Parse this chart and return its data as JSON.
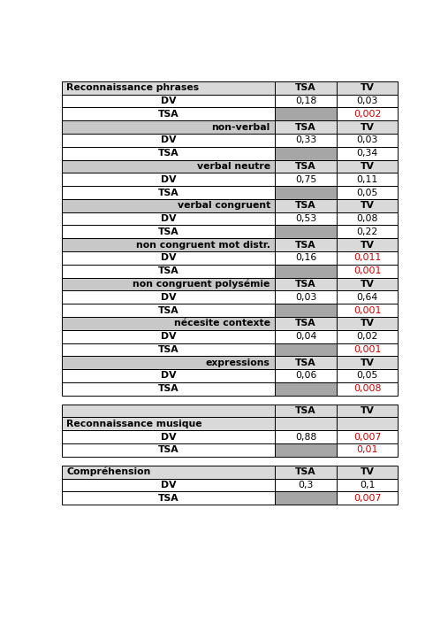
{
  "col_bg_light": "#d9d9d9",
  "col_bg_dark": "#a6a6a6",
  "white_bg": "#ffffff",
  "red_color": "#cc0000",
  "black_color": "#000000",
  "rows": [
    {
      "type": "section_header",
      "label": "Reconnaissance phrases",
      "tsa": "TSA",
      "tv": "TV"
    },
    {
      "type": "data",
      "label": "DV",
      "tsa": "0,18",
      "tv": "0,03",
      "tv_red": false
    },
    {
      "type": "data",
      "label": "TSA",
      "tsa": "",
      "tv": "0,002",
      "tv_red": true
    },
    {
      "type": "subheader",
      "label": "non-verbal",
      "tsa": "TSA",
      "tv": "TV"
    },
    {
      "type": "data",
      "label": "DV",
      "tsa": "0,33",
      "tv": "0,03",
      "tv_red": false
    },
    {
      "type": "data",
      "label": "TSA",
      "tsa": "",
      "tv": "0,34",
      "tv_red": false
    },
    {
      "type": "subheader",
      "label": "verbal neutre",
      "tsa": "TSA",
      "tv": "TV"
    },
    {
      "type": "data",
      "label": "DV",
      "tsa": "0,75",
      "tv": "0,11",
      "tv_red": false
    },
    {
      "type": "data",
      "label": "TSA",
      "tsa": "",
      "tv": "0,05",
      "tv_red": false
    },
    {
      "type": "subheader",
      "label": "verbal congruent",
      "tsa": "TSA",
      "tv": "TV"
    },
    {
      "type": "data",
      "label": "DV",
      "tsa": "0,53",
      "tv": "0,08",
      "tv_red": false
    },
    {
      "type": "data",
      "label": "TSA",
      "tsa": "",
      "tv": "0,22",
      "tv_red": false
    },
    {
      "type": "subheader",
      "label": "non congruent mot distr.",
      "tsa": "TSA",
      "tv": "TV"
    },
    {
      "type": "data",
      "label": "DV",
      "tsa": "0,16",
      "tv": "0,011",
      "tv_red": true
    },
    {
      "type": "data",
      "label": "TSA",
      "tsa": "",
      "tv": "0,001",
      "tv_red": true
    },
    {
      "type": "subheader",
      "label": "non congruent polysémie",
      "tsa": "TSA",
      "tv": "TV"
    },
    {
      "type": "data",
      "label": "DV",
      "tsa": "0,03",
      "tv": "0,64",
      "tv_red": false
    },
    {
      "type": "data",
      "label": "TSA",
      "tsa": "",
      "tv": "0,001",
      "tv_red": true
    },
    {
      "type": "subheader",
      "label": "nécesite contexte",
      "tsa": "TSA",
      "tv": "TV"
    },
    {
      "type": "data",
      "label": "DV",
      "tsa": "0,04",
      "tv": "0,02",
      "tv_red": false
    },
    {
      "type": "data",
      "label": "TSA",
      "tsa": "",
      "tv": "0,001",
      "tv_red": true
    },
    {
      "type": "subheader",
      "label": "expressions",
      "tsa": "TSA",
      "tv": "TV"
    },
    {
      "type": "data",
      "label": "DV",
      "tsa": "0,06",
      "tv": "0,05",
      "tv_red": false
    },
    {
      "type": "data",
      "label": "TSA",
      "tsa": "",
      "tv": "0,008",
      "tv_red": true
    },
    {
      "type": "gap"
    },
    {
      "type": "musique_header_top",
      "label": "",
      "tsa": "TSA",
      "tv": "TV"
    },
    {
      "type": "musique_header_bot",
      "label": "Reconnaissance musique",
      "tsa": "",
      "tv": ""
    },
    {
      "type": "data",
      "label": "DV",
      "tsa": "0,88",
      "tv": "0,007",
      "tv_red": true
    },
    {
      "type": "data",
      "label": "TSA",
      "tsa": "",
      "tv": "0,01",
      "tv_red": true
    },
    {
      "type": "gap"
    },
    {
      "type": "section_header",
      "label": "Compréhension",
      "tsa": "TSA",
      "tv": "TV"
    },
    {
      "type": "data",
      "label": "DV",
      "tsa": "0,3",
      "tv": "0,1",
      "tv_red": false
    },
    {
      "type": "data",
      "label": "TSA",
      "tsa": "",
      "tv": "0,007",
      "tv_red": true
    }
  ]
}
